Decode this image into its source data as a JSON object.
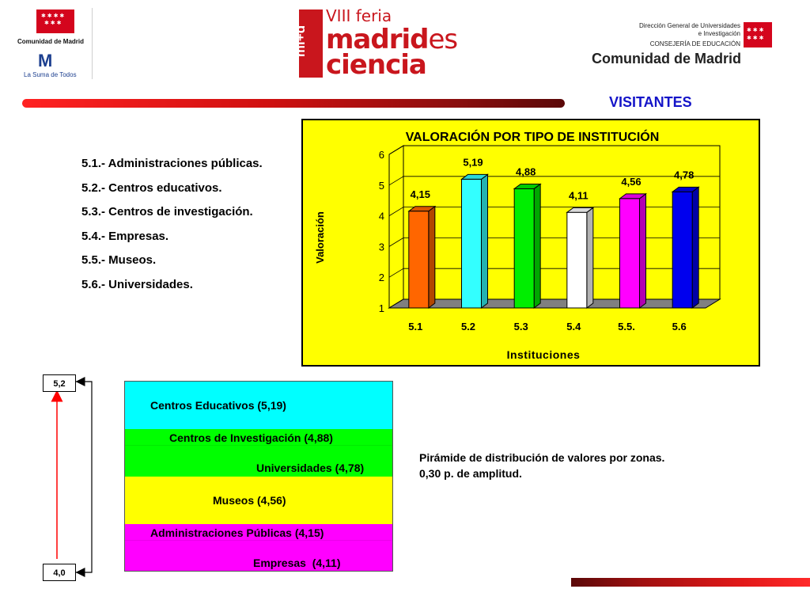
{
  "header": {
    "left_logo": {
      "name": "Comunidad de Madrid",
      "slogan": "La Suma de Todos",
      "mark": "M"
    },
    "center_logo": {
      "vertical": "mi+d",
      "line1": "VIII feria",
      "line2_bold": "madrid",
      "line2_rest": "es",
      "line3": "ciencia"
    },
    "right_logo": {
      "line1": "Dirección General de Universidades",
      "line2": "e Investigación",
      "line3": "CONSEJERÍA DE EDUCACIÓN",
      "line4": "Comunidad de Madrid"
    }
  },
  "section_title": "VISITANTES",
  "institutions_list": [
    "5.1.- Administraciones públicas.",
    "5.2.- Centros educativos.",
    "5.3.- Centros de investigación.",
    "5.4.- Empresas.",
    "5.5.- Museos.",
    "5.6.- Universidades."
  ],
  "chart_data": {
    "type": "bar",
    "title": "VALORACIÓN POR TIPO DE INSTITUCIÓN",
    "xlabel": "Instituciones",
    "ylabel": "Valoración",
    "categories": [
      "5.1",
      "5.2",
      "5.3",
      "5.4",
      "5.5.",
      "5.6"
    ],
    "values": [
      4.15,
      5.19,
      4.88,
      4.11,
      4.56,
      4.78
    ],
    "value_labels": [
      "4,15",
      "5,19",
      "4,88",
      "4,11",
      "4,56",
      "4,78"
    ],
    "colors": [
      "#ff6600",
      "#33ffff",
      "#00ee00",
      "#ffffff",
      "#ff00ff",
      "#0000ee"
    ],
    "ylim": [
      1,
      6
    ],
    "yticks": [
      "1",
      "2",
      "3",
      "4",
      "5",
      "6"
    ],
    "grid": true,
    "three_d": true,
    "background": "#ffff00"
  },
  "pyramid": {
    "top_value": "5,2",
    "bottom_value": "4,0",
    "zones": [
      {
        "color": "#00ffff",
        "labels": [
          "Centros Educativos (5,19)"
        ]
      },
      {
        "color": "#00ff00",
        "labels": [
          "Centros de Investigación (4,88)",
          "Universidades (4,78)"
        ]
      },
      {
        "color": "#ffff00",
        "labels": [
          "Museos (4,56)"
        ]
      },
      {
        "color": "#ff00ff",
        "labels": [
          "Administraciones Públicas (4,15)",
          "Empresas  (4,11)"
        ]
      }
    ],
    "note_line1": "Pirámide de distribución de valores por zonas.",
    "note_line2": "0,30 p. de amplitud."
  }
}
